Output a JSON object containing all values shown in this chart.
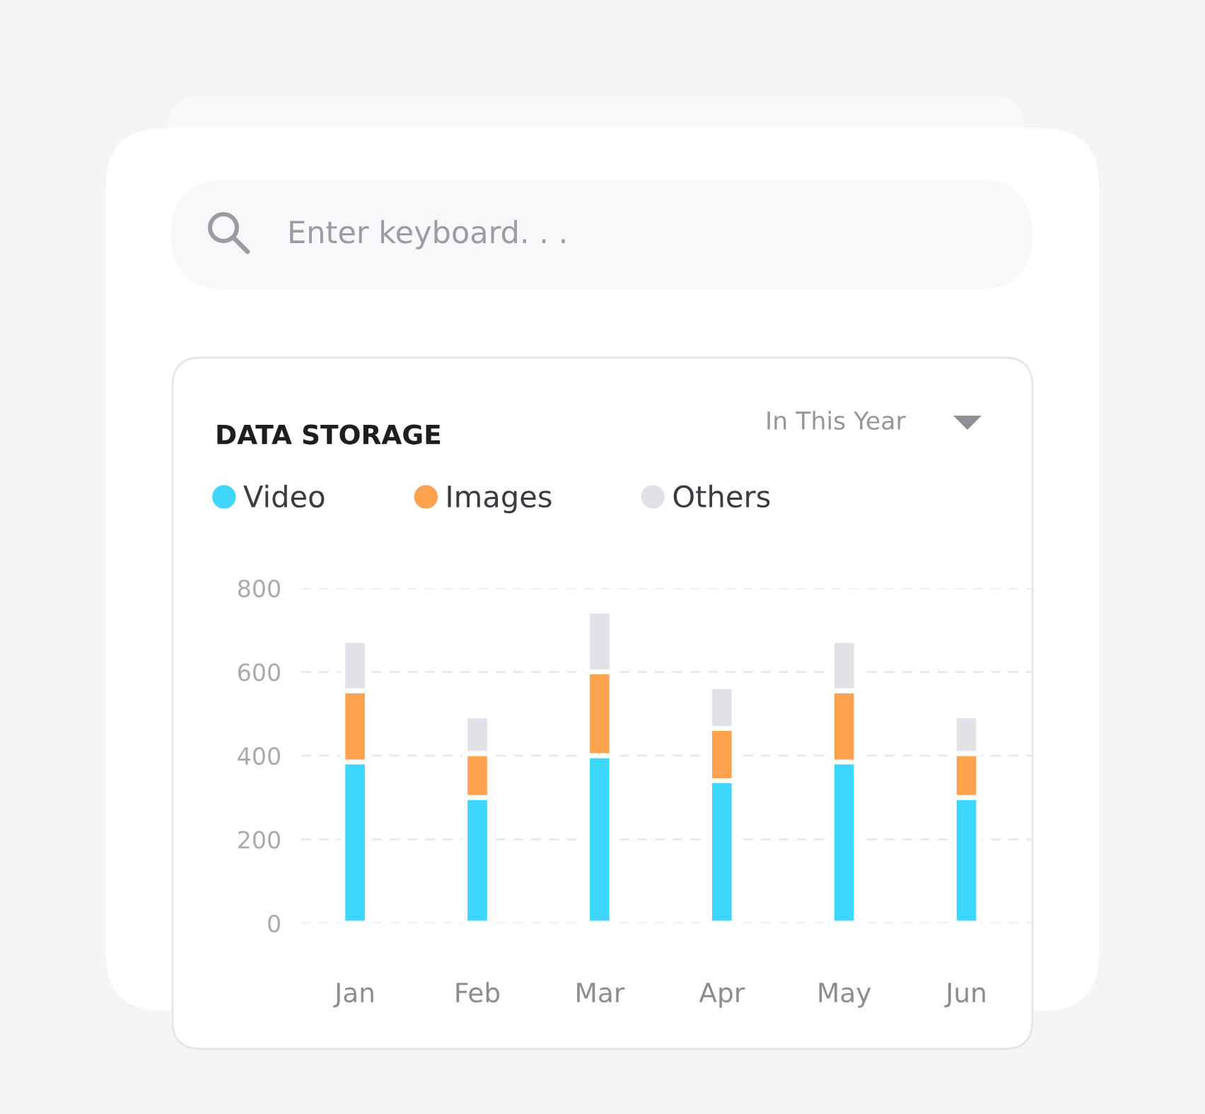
{
  "chart_data": {
    "type": "bar",
    "title": "DATA STORAGE",
    "stacked": true,
    "categories": [
      "Jan",
      "Feb",
      "Mar",
      "Apr",
      "May",
      "Jun"
    ],
    "series": [
      {
        "name": "Video",
        "color": "#3fd6fc",
        "values": [
          385,
          300,
          400,
          340,
          385,
          300
        ]
      },
      {
        "name": "Images",
        "color": "#fda34f",
        "values": [
          170,
          105,
          200,
          125,
          170,
          105
        ]
      },
      {
        "name": "Others",
        "color": "#e1e2e7",
        "values": [
          120,
          90,
          145,
          100,
          120,
          90
        ]
      }
    ],
    "ylim": [
      0,
      800
    ],
    "yticks": [
      0,
      200,
      400,
      600,
      800
    ],
    "grid": "y",
    "legend": "top left",
    "annotations": [
      "Enter keyboard. . .",
      "In This Year"
    ]
  }
}
